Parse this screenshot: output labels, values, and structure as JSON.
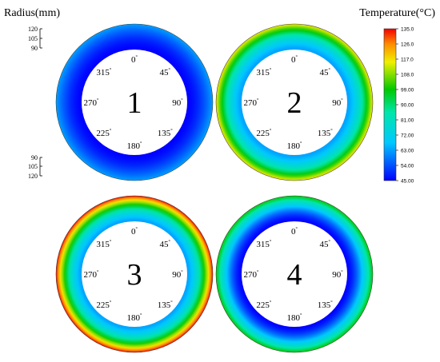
{
  "chart_data": {
    "type": "heatmap",
    "title": "",
    "radius_axis": {
      "label": "Radius(mm)",
      "top_ticks": [
        "120",
        "105",
        "90"
      ],
      "bottom_ticks": [
        "90",
        "105",
        "120"
      ]
    },
    "colorbar": {
      "label": "Temperature(°C)",
      "range": [
        45,
        135
      ],
      "ticks": [
        "135.0",
        "126.0",
        "117.0",
        "108.0",
        "99.00",
        "90.00",
        "81.00",
        "72.00",
        "63.00",
        "54.00",
        "45.00"
      ]
    },
    "angle_labels": [
      "0",
      "45",
      "90",
      "135",
      "180",
      "225",
      "270",
      "315"
    ],
    "degree_symbol": "°",
    "rings": [
      {
        "label": "1",
        "inner_temp": 45,
        "outer_temp": 63
      },
      {
        "label": "2",
        "inner_temp": 63,
        "outer_temp": 117
      },
      {
        "label": "3",
        "inner_temp": 63,
        "outer_temp": 135
      },
      {
        "label": "4",
        "inner_temp": 45,
        "outer_temp": 99
      }
    ]
  }
}
